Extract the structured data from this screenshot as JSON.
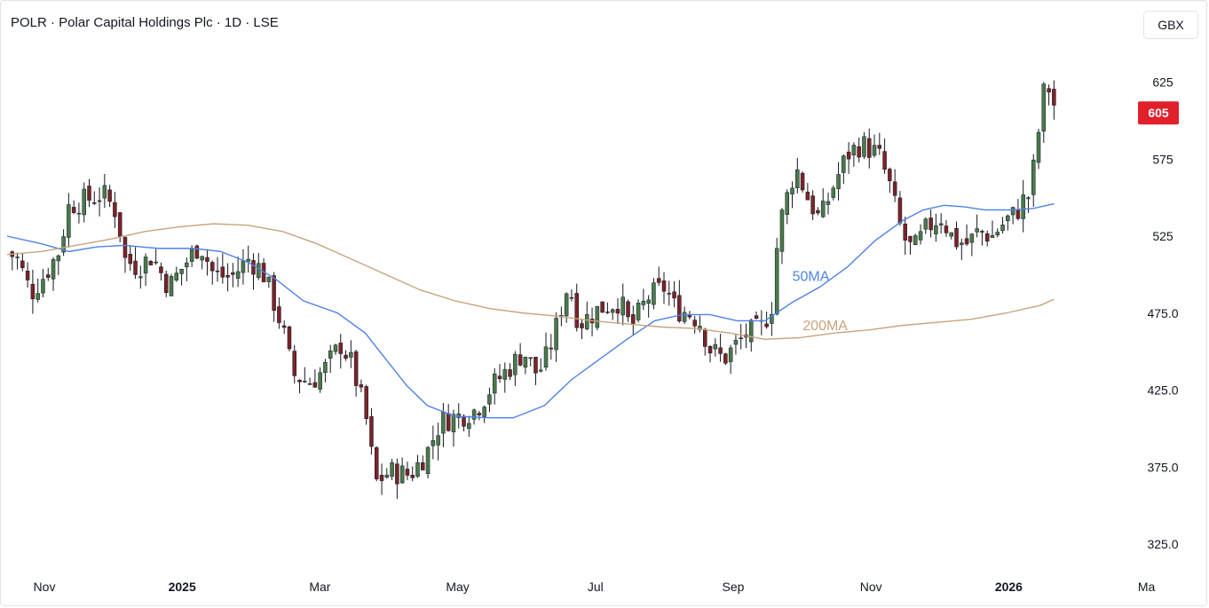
{
  "header": {
    "title": "POLR · Polar Capital Holdings Plc · 1D · LSE",
    "currency": "GBX"
  },
  "chart_data": {
    "type": "candlestick",
    "y_ticks": [
      "625",
      "575",
      "525",
      "475.0",
      "425.0",
      "375.0",
      "325.0"
    ],
    "y_tick_values": [
      625,
      575,
      525,
      475,
      425,
      375,
      325
    ],
    "ylim": [
      305,
      645
    ],
    "x_ticks": [
      {
        "label": "Nov",
        "day": 0,
        "bold": false
      },
      {
        "label": "2025",
        "day": 2,
        "bold": true
      },
      {
        "label": "Mar",
        "day": 4,
        "bold": false
      },
      {
        "label": "May",
        "day": 6,
        "bold": false
      },
      {
        "label": "Jul",
        "day": 8,
        "bold": false
      },
      {
        "label": "Sep",
        "day": 10,
        "bold": false
      },
      {
        "label": "Nov",
        "day": 12,
        "bold": false
      },
      {
        "label": "2026",
        "day": 14,
        "bold": true
      },
      {
        "label": "Ma",
        "day": 16,
        "bold": false
      }
    ],
    "last_price": {
      "label": "605",
      "value": 605,
      "color": "#e0202a"
    },
    "up_color": "#4a7a4a",
    "down_color": "#7a2428",
    "close_points": [
      [
        0.0,
        515
      ],
      [
        0.15,
        510
      ],
      [
        0.35,
        488
      ],
      [
        0.55,
        500
      ],
      [
        0.75,
        515
      ],
      [
        0.9,
        545
      ],
      [
        1.1,
        548
      ],
      [
        1.4,
        552
      ],
      [
        1.6,
        540
      ],
      [
        1.7,
        510
      ],
      [
        1.9,
        505
      ],
      [
        2.1,
        512
      ],
      [
        2.35,
        492
      ],
      [
        2.55,
        505
      ],
      [
        2.8,
        520
      ],
      [
        3.0,
        500
      ],
      [
        3.25,
        498
      ],
      [
        3.5,
        510
      ],
      [
        3.7,
        503
      ],
      [
        3.85,
        485
      ],
      [
        4.0,
        465
      ],
      [
        4.15,
        435
      ],
      [
        4.4,
        430
      ],
      [
        4.6,
        438
      ],
      [
        4.85,
        455
      ],
      [
        5.0,
        442
      ],
      [
        5.2,
        410
      ],
      [
        5.35,
        365
      ],
      [
        5.55,
        372
      ],
      [
        5.85,
        370
      ],
      [
        6.1,
        385
      ],
      [
        6.3,
        405
      ],
      [
        6.55,
        408
      ],
      [
        6.8,
        412
      ],
      [
        7.05,
        428
      ],
      [
        7.3,
        440
      ],
      [
        7.5,
        450
      ],
      [
        7.7,
        435
      ],
      [
        7.85,
        448
      ],
      [
        8.0,
        470
      ],
      [
        8.15,
        495
      ],
      [
        8.3,
        468
      ],
      [
        8.6,
        478
      ],
      [
        8.9,
        483
      ],
      [
        9.05,
        465
      ],
      [
        9.3,
        485
      ],
      [
        9.55,
        492
      ],
      [
        9.7,
        478
      ],
      [
        9.9,
        475
      ],
      [
        10.05,
        470
      ],
      [
        10.2,
        452
      ],
      [
        10.4,
        445
      ],
      [
        10.6,
        455
      ],
      [
        10.75,
        462
      ],
      [
        10.95,
        465
      ],
      [
        11.1,
        480
      ],
      [
        11.2,
        530
      ],
      [
        11.35,
        555
      ],
      [
        11.45,
        570
      ],
      [
        11.6,
        552
      ],
      [
        11.8,
        535
      ],
      [
        12.0,
        558
      ],
      [
        12.2,
        578
      ],
      [
        12.4,
        585
      ],
      [
        12.65,
        578
      ],
      [
        12.8,
        560
      ],
      [
        13.0,
        525
      ],
      [
        13.15,
        515
      ],
      [
        13.35,
        530
      ],
      [
        13.55,
        538
      ],
      [
        13.75,
        522
      ],
      [
        13.95,
        520
      ],
      [
        14.1,
        528
      ],
      [
        14.3,
        525
      ],
      [
        14.5,
        535
      ],
      [
        14.65,
        540
      ],
      [
        14.75,
        548
      ],
      [
        14.85,
        552
      ],
      [
        14.95,
        585
      ],
      [
        15.05,
        618
      ],
      [
        15.15,
        622
      ],
      [
        15.22,
        605
      ]
    ],
    "series": [
      {
        "name": "50MA",
        "color": "#4e82e8",
        "points": [
          [
            0.0,
            525
          ],
          [
            0.5,
            520
          ],
          [
            0.9,
            515
          ],
          [
            1.3,
            518
          ],
          [
            1.7,
            519
          ],
          [
            2.2,
            517
          ],
          [
            2.7,
            517
          ],
          [
            3.1,
            515
          ],
          [
            3.5,
            508
          ],
          [
            3.9,
            497
          ],
          [
            4.3,
            483
          ],
          [
            4.8,
            475
          ],
          [
            5.2,
            462
          ],
          [
            5.5,
            445
          ],
          [
            5.8,
            428
          ],
          [
            6.1,
            415
          ],
          [
            6.5,
            408
          ],
          [
            7.0,
            407
          ],
          [
            7.35,
            407
          ],
          [
            7.8,
            415
          ],
          [
            8.2,
            432
          ],
          [
            8.6,
            445
          ],
          [
            9.0,
            458
          ],
          [
            9.4,
            470
          ],
          [
            9.8,
            474
          ],
          [
            10.2,
            474
          ],
          [
            10.6,
            470
          ],
          [
            11.0,
            470
          ],
          [
            11.4,
            482
          ],
          [
            11.8,
            492
          ],
          [
            12.2,
            505
          ],
          [
            12.6,
            522
          ],
          [
            13.0,
            535
          ],
          [
            13.3,
            542
          ],
          [
            13.6,
            545
          ],
          [
            13.9,
            544
          ],
          [
            14.2,
            542
          ],
          [
            14.6,
            542
          ],
          [
            14.9,
            543
          ],
          [
            15.2,
            546
          ]
        ]
      },
      {
        "name": "200MA",
        "color": "#c8a47e",
        "points": [
          [
            0.0,
            513
          ],
          [
            0.5,
            515
          ],
          [
            1.0,
            519
          ],
          [
            1.5,
            523
          ],
          [
            2.0,
            528
          ],
          [
            2.5,
            531
          ],
          [
            3.0,
            533
          ],
          [
            3.5,
            532
          ],
          [
            4.0,
            528
          ],
          [
            4.5,
            520
          ],
          [
            5.0,
            510
          ],
          [
            5.5,
            500
          ],
          [
            6.0,
            490
          ],
          [
            6.5,
            483
          ],
          [
            7.0,
            478
          ],
          [
            7.5,
            475
          ],
          [
            8.0,
            473
          ],
          [
            8.5,
            470
          ],
          [
            9.0,
            468
          ],
          [
            9.5,
            466
          ],
          [
            10.0,
            465
          ],
          [
            10.5,
            462
          ],
          [
            11.0,
            458
          ],
          [
            11.5,
            459
          ],
          [
            12.0,
            462
          ],
          [
            12.5,
            464
          ],
          [
            13.0,
            467
          ],
          [
            13.5,
            469
          ],
          [
            14.0,
            471
          ],
          [
            14.5,
            475
          ],
          [
            15.0,
            480
          ],
          [
            15.2,
            484
          ]
        ]
      }
    ],
    "annotations": [
      {
        "label": "50MA",
        "color": "#4e82e8",
        "day": 11.4,
        "value": 496
      },
      {
        "label": "200MA",
        "color": "#c8a47e",
        "day": 11.55,
        "value": 464
      }
    ]
  }
}
